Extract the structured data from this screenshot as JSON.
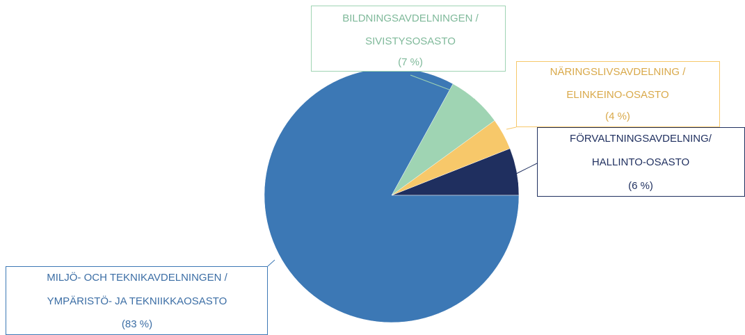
{
  "chart_data": {
    "type": "pie",
    "categories": [
      "FÖRVALTNINGSAVDELNING/ HALLINTO-OSASTO",
      "NÄRINGSLIVSAVDELNING / ELINKEINO-OSASTO",
      "BILDNINGSAVDELNINGEN / SIVISTYSOSASTO",
      "MILJÖ- OCH TEKNIKAVDELNINGEN / YMPÄRISTÖ- JA TEKNIIKKAOSASTO"
    ],
    "values": [
      6,
      4,
      7,
      83
    ],
    "value_labels": [
      "(6 %)",
      "(4 %)",
      "(7 %)",
      "(83 %)"
    ],
    "colors": [
      "#1f2f5f",
      "#f7c86a",
      "#9fd4b3",
      "#3c78b5"
    ]
  }
}
